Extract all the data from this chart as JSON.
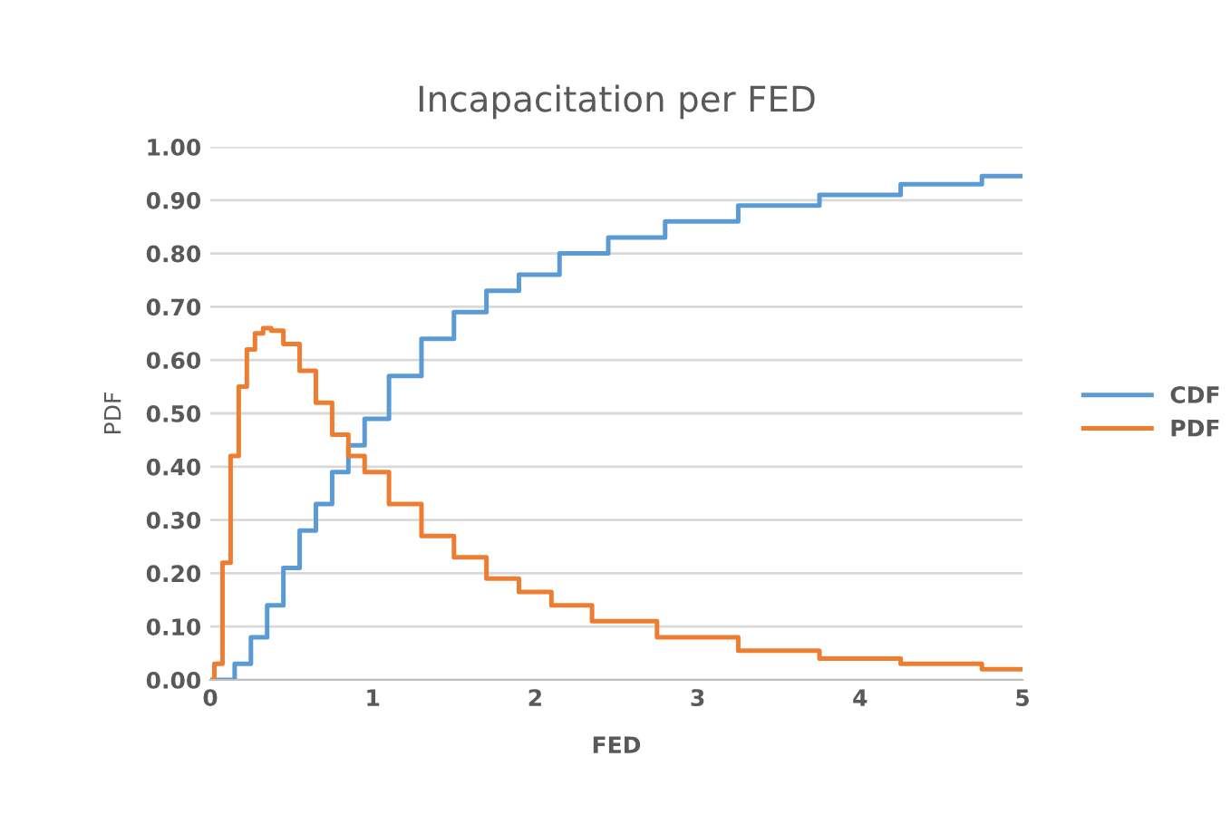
{
  "chart_data": {
    "type": "step",
    "title": "Incapacitation per FED",
    "xlabel": "FED",
    "ylabel": "PDF",
    "series": [
      {
        "name": "CDF",
        "color": "#5b9bd5",
        "x": [
          0,
          0.1,
          0.2,
          0.3,
          0.4,
          0.5,
          0.6,
          0.7,
          0.8,
          0.9,
          1.0,
          1.2,
          1.4,
          1.6,
          1.8,
          2.0,
          2.3,
          2.6,
          3.0,
          3.5,
          4.0,
          4.5,
          5.0
        ],
        "values": [
          0,
          0.0,
          0.03,
          0.08,
          0.14,
          0.21,
          0.28,
          0.33,
          0.39,
          0.44,
          0.49,
          0.57,
          0.64,
          0.69,
          0.73,
          0.76,
          0.8,
          0.83,
          0.86,
          0.89,
          0.91,
          0.93,
          0.945
        ]
      },
      {
        "name": "PDF",
        "color": "#ed7d31",
        "x": [
          0,
          0.05,
          0.1,
          0.15,
          0.2,
          0.25,
          0.3,
          0.35,
          0.4,
          0.5,
          0.6,
          0.7,
          0.8,
          0.9,
          1.0,
          1.2,
          1.4,
          1.6,
          1.8,
          2.0,
          2.2,
          2.5,
          3.0,
          3.5,
          4.0,
          4.5,
          5.0
        ],
        "values": [
          0,
          0.03,
          0.22,
          0.42,
          0.55,
          0.62,
          0.65,
          0.66,
          0.655,
          0.63,
          0.58,
          0.52,
          0.46,
          0.42,
          0.39,
          0.33,
          0.27,
          0.23,
          0.19,
          0.165,
          0.14,
          0.11,
          0.08,
          0.055,
          0.04,
          0.03,
          0.02
        ]
      }
    ],
    "xlim": [
      0,
      5
    ],
    "xticks": [
      0,
      1,
      2,
      3,
      4,
      5
    ],
    "ylim": [
      0,
      1
    ],
    "yticks": [
      {
        "value": 0,
        "label": "0.00"
      },
      {
        "value": 0.1,
        "label": "0.10"
      },
      {
        "value": 0.2,
        "label": "0.20"
      },
      {
        "value": 0.3,
        "label": "0.30"
      },
      {
        "value": 0.4,
        "label": "0.40"
      },
      {
        "value": 0.5,
        "label": "0.50"
      },
      {
        "value": 0.6,
        "label": "0.60"
      },
      {
        "value": 0.7,
        "label": "0.70"
      },
      {
        "value": 0.8,
        "label": "0.80"
      },
      {
        "value": 0.9,
        "label": "0.90"
      },
      {
        "value": 1,
        "label": "1.00"
      }
    ],
    "grid": "y",
    "legend": "right"
  }
}
